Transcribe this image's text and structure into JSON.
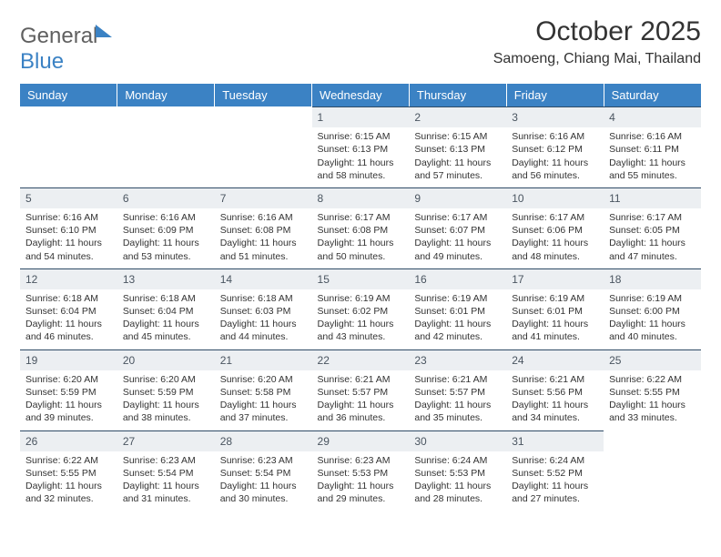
{
  "brand": {
    "part1": "General",
    "part2": "Blue"
  },
  "title": "October 2025",
  "location": "Samoeng, Chiang Mai, Thailand",
  "colors": {
    "header_bg": "#3b82c4",
    "header_text": "#ffffff",
    "daynum_bg": "#eceff2",
    "daynum_border": "#2f4b66",
    "page_bg": "#ffffff",
    "text": "#333333"
  },
  "weekdays": [
    "Sunday",
    "Monday",
    "Tuesday",
    "Wednesday",
    "Thursday",
    "Friday",
    "Saturday"
  ],
  "weeks": [
    [
      null,
      null,
      null,
      {
        "n": "1",
        "sr": "6:15 AM",
        "ss": "6:13 PM",
        "dl": "11 hours and 58 minutes."
      },
      {
        "n": "2",
        "sr": "6:15 AM",
        "ss": "6:13 PM",
        "dl": "11 hours and 57 minutes."
      },
      {
        "n": "3",
        "sr": "6:16 AM",
        "ss": "6:12 PM",
        "dl": "11 hours and 56 minutes."
      },
      {
        "n": "4",
        "sr": "6:16 AM",
        "ss": "6:11 PM",
        "dl": "11 hours and 55 minutes."
      }
    ],
    [
      {
        "n": "5",
        "sr": "6:16 AM",
        "ss": "6:10 PM",
        "dl": "11 hours and 54 minutes."
      },
      {
        "n": "6",
        "sr": "6:16 AM",
        "ss": "6:09 PM",
        "dl": "11 hours and 53 minutes."
      },
      {
        "n": "7",
        "sr": "6:16 AM",
        "ss": "6:08 PM",
        "dl": "11 hours and 51 minutes."
      },
      {
        "n": "8",
        "sr": "6:17 AM",
        "ss": "6:08 PM",
        "dl": "11 hours and 50 minutes."
      },
      {
        "n": "9",
        "sr": "6:17 AM",
        "ss": "6:07 PM",
        "dl": "11 hours and 49 minutes."
      },
      {
        "n": "10",
        "sr": "6:17 AM",
        "ss": "6:06 PM",
        "dl": "11 hours and 48 minutes."
      },
      {
        "n": "11",
        "sr": "6:17 AM",
        "ss": "6:05 PM",
        "dl": "11 hours and 47 minutes."
      }
    ],
    [
      {
        "n": "12",
        "sr": "6:18 AM",
        "ss": "6:04 PM",
        "dl": "11 hours and 46 minutes."
      },
      {
        "n": "13",
        "sr": "6:18 AM",
        "ss": "6:04 PM",
        "dl": "11 hours and 45 minutes."
      },
      {
        "n": "14",
        "sr": "6:18 AM",
        "ss": "6:03 PM",
        "dl": "11 hours and 44 minutes."
      },
      {
        "n": "15",
        "sr": "6:19 AM",
        "ss": "6:02 PM",
        "dl": "11 hours and 43 minutes."
      },
      {
        "n": "16",
        "sr": "6:19 AM",
        "ss": "6:01 PM",
        "dl": "11 hours and 42 minutes."
      },
      {
        "n": "17",
        "sr": "6:19 AM",
        "ss": "6:01 PM",
        "dl": "11 hours and 41 minutes."
      },
      {
        "n": "18",
        "sr": "6:19 AM",
        "ss": "6:00 PM",
        "dl": "11 hours and 40 minutes."
      }
    ],
    [
      {
        "n": "19",
        "sr": "6:20 AM",
        "ss": "5:59 PM",
        "dl": "11 hours and 39 minutes."
      },
      {
        "n": "20",
        "sr": "6:20 AM",
        "ss": "5:59 PM",
        "dl": "11 hours and 38 minutes."
      },
      {
        "n": "21",
        "sr": "6:20 AM",
        "ss": "5:58 PM",
        "dl": "11 hours and 37 minutes."
      },
      {
        "n": "22",
        "sr": "6:21 AM",
        "ss": "5:57 PM",
        "dl": "11 hours and 36 minutes."
      },
      {
        "n": "23",
        "sr": "6:21 AM",
        "ss": "5:57 PM",
        "dl": "11 hours and 35 minutes."
      },
      {
        "n": "24",
        "sr": "6:21 AM",
        "ss": "5:56 PM",
        "dl": "11 hours and 34 minutes."
      },
      {
        "n": "25",
        "sr": "6:22 AM",
        "ss": "5:55 PM",
        "dl": "11 hours and 33 minutes."
      }
    ],
    [
      {
        "n": "26",
        "sr": "6:22 AM",
        "ss": "5:55 PM",
        "dl": "11 hours and 32 minutes."
      },
      {
        "n": "27",
        "sr": "6:23 AM",
        "ss": "5:54 PM",
        "dl": "11 hours and 31 minutes."
      },
      {
        "n": "28",
        "sr": "6:23 AM",
        "ss": "5:54 PM",
        "dl": "11 hours and 30 minutes."
      },
      {
        "n": "29",
        "sr": "6:23 AM",
        "ss": "5:53 PM",
        "dl": "11 hours and 29 minutes."
      },
      {
        "n": "30",
        "sr": "6:24 AM",
        "ss": "5:53 PM",
        "dl": "11 hours and 28 minutes."
      },
      {
        "n": "31",
        "sr": "6:24 AM",
        "ss": "5:52 PM",
        "dl": "11 hours and 27 minutes."
      },
      null
    ]
  ],
  "labels": {
    "sunrise": "Sunrise:",
    "sunset": "Sunset:",
    "daylight": "Daylight:"
  }
}
